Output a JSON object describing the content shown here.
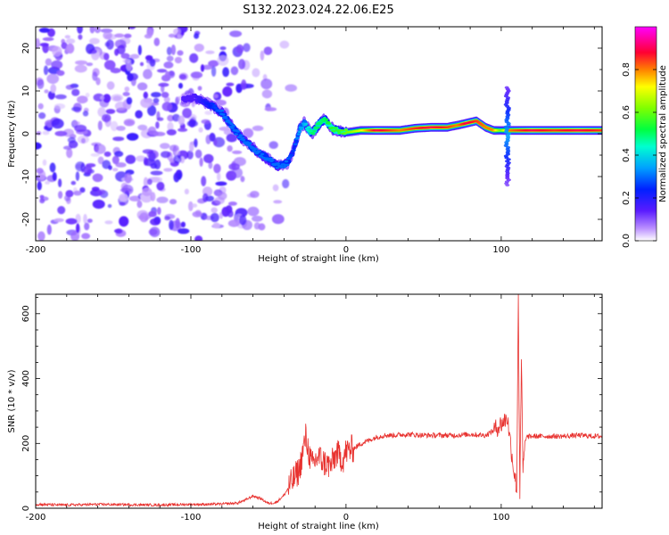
{
  "title": "S132.2023.024.22.06.E25",
  "colors": {
    "spectrogram_scale": [
      "#ffffff",
      "#e6d7ff",
      "#b88cff",
      "#7a2cff",
      "#2a1cff",
      "#00a0ff",
      "#00ffd0",
      "#33ff33",
      "#ffff00",
      "#ff8000",
      "#ff0055",
      "#ff00ff"
    ],
    "snr_line": "#e8322f"
  },
  "chart_data": [
    {
      "type": "heatmap",
      "title": "S132.2023.024.22.06.E25",
      "xlabel": "Height of straight line (km)",
      "ylabel": "Frequency (Hz)",
      "xlim": [
        -200,
        165
      ],
      "ylim": [
        -25,
        25
      ],
      "xticks": [
        -200,
        -100,
        0,
        100
      ],
      "yticks": [
        -20,
        -10,
        0,
        10,
        20
      ],
      "colorbar": {
        "label": "Normalized spectral amplitude",
        "range": [
          0,
          1
        ],
        "ticks": [
          "0.0",
          "0.2",
          "0.4",
          "0.6",
          "0.8"
        ]
      },
      "noise_region_x": [
        -200,
        -40
      ],
      "ridge": [
        {
          "x": -105,
          "f": 8,
          "amp": 0.15
        },
        {
          "x": -98,
          "f": 8.5,
          "amp": 0.15
        },
        {
          "x": -92,
          "f": 7.5,
          "amp": 0.2
        },
        {
          "x": -86,
          "f": 6.5,
          "amp": 0.25
        },
        {
          "x": -80,
          "f": 5,
          "amp": 0.3
        },
        {
          "x": -76,
          "f": 3,
          "amp": 0.3
        },
        {
          "x": -71,
          "f": 0.5,
          "amp": 0.3
        },
        {
          "x": -66,
          "f": -1.5,
          "amp": 0.3
        },
        {
          "x": -61,
          "f": -3,
          "amp": 0.3
        },
        {
          "x": -56,
          "f": -4.5,
          "amp": 0.3
        },
        {
          "x": -50,
          "f": -6,
          "amp": 0.3
        },
        {
          "x": -44,
          "f": -7.5,
          "amp": 0.3
        },
        {
          "x": -38,
          "f": -7,
          "amp": 0.3
        },
        {
          "x": -34,
          "f": -4,
          "amp": 0.25
        },
        {
          "x": -30,
          "f": 1,
          "amp": 0.35
        },
        {
          "x": -27,
          "f": 2.5,
          "amp": 0.35
        },
        {
          "x": -22,
          "f": 0,
          "amp": 0.5
        },
        {
          "x": -18,
          "f": 2,
          "amp": 0.5
        },
        {
          "x": -14,
          "f": 3.5,
          "amp": 0.5
        },
        {
          "x": -10,
          "f": 1.5,
          "amp": 0.55
        },
        {
          "x": -5,
          "f": 0.5,
          "amp": 0.55
        },
        {
          "x": 0,
          "f": 0.3,
          "amp": 0.6
        },
        {
          "x": 10,
          "f": 0.8,
          "amp": 0.7
        },
        {
          "x": 20,
          "f": 0.8,
          "amp": 0.9
        },
        {
          "x": 35,
          "f": 0.8,
          "amp": 0.8
        },
        {
          "x": 45,
          "f": 1.3,
          "amp": 0.85
        },
        {
          "x": 55,
          "f": 1.5,
          "amp": 0.9
        },
        {
          "x": 65,
          "f": 1.5,
          "amp": 0.85
        },
        {
          "x": 72,
          "f": 2,
          "amp": 0.8
        },
        {
          "x": 78,
          "f": 2.5,
          "amp": 0.9
        },
        {
          "x": 84,
          "f": 3,
          "amp": 0.85
        },
        {
          "x": 90,
          "f": 1.5,
          "amp": 0.8
        },
        {
          "x": 95,
          "f": 0.8,
          "amp": 0.8
        },
        {
          "x": 100,
          "f": 0.8,
          "amp": 0.6
        },
        {
          "x": 105,
          "f": 0.8,
          "amp": 0.8
        },
        {
          "x": 120,
          "f": 0.8,
          "amp": 0.9
        },
        {
          "x": 135,
          "f": 0.8,
          "amp": 0.85
        },
        {
          "x": 150,
          "f": 0.8,
          "amp": 0.9
        },
        {
          "x": 165,
          "f": 0.8,
          "amp": 0.85
        }
      ],
      "spike": {
        "x": 104,
        "f_range": [
          -12,
          11
        ]
      }
    },
    {
      "type": "line",
      "xlabel": "Height of straight line (km)",
      "ylabel": "SNR (10 * v/v)",
      "xlim": [
        -200,
        165
      ],
      "ylim": [
        0,
        660
      ],
      "xticks": [
        -200,
        -100,
        0,
        100
      ],
      "yticks": [
        0,
        200,
        400,
        600
      ],
      "series": [
        {
          "x": [
            -200,
            -180,
            -160,
            -140,
            -120,
            -100,
            -90,
            -80,
            -70,
            -65,
            -60,
            -55,
            -50,
            -45,
            -40,
            -35,
            -30,
            -26,
            -22,
            -18,
            -14,
            -10,
            -6,
            -2,
            0,
            5,
            10,
            15,
            20,
            25,
            30,
            40,
            50,
            60,
            70,
            80,
            90,
            95,
            100,
            104,
            106,
            108,
            110,
            111,
            112,
            113,
            114,
            116,
            120,
            130,
            140,
            150,
            160,
            165
          ],
          "y": [
            12,
            10,
            12,
            11,
            10,
            12,
            12,
            13,
            16,
            25,
            38,
            30,
            15,
            18,
            40,
            80,
            120,
            220,
            130,
            160,
            140,
            130,
            170,
            150,
            175,
            185,
            200,
            210,
            220,
            225,
            225,
            228,
            225,
            225,
            225,
            228,
            225,
            240,
            260,
            280,
            200,
            120,
            60,
            660,
            40,
            450,
            120,
            220,
            222,
            222,
            222,
            225,
            222,
            222
          ]
        }
      ]
    }
  ]
}
